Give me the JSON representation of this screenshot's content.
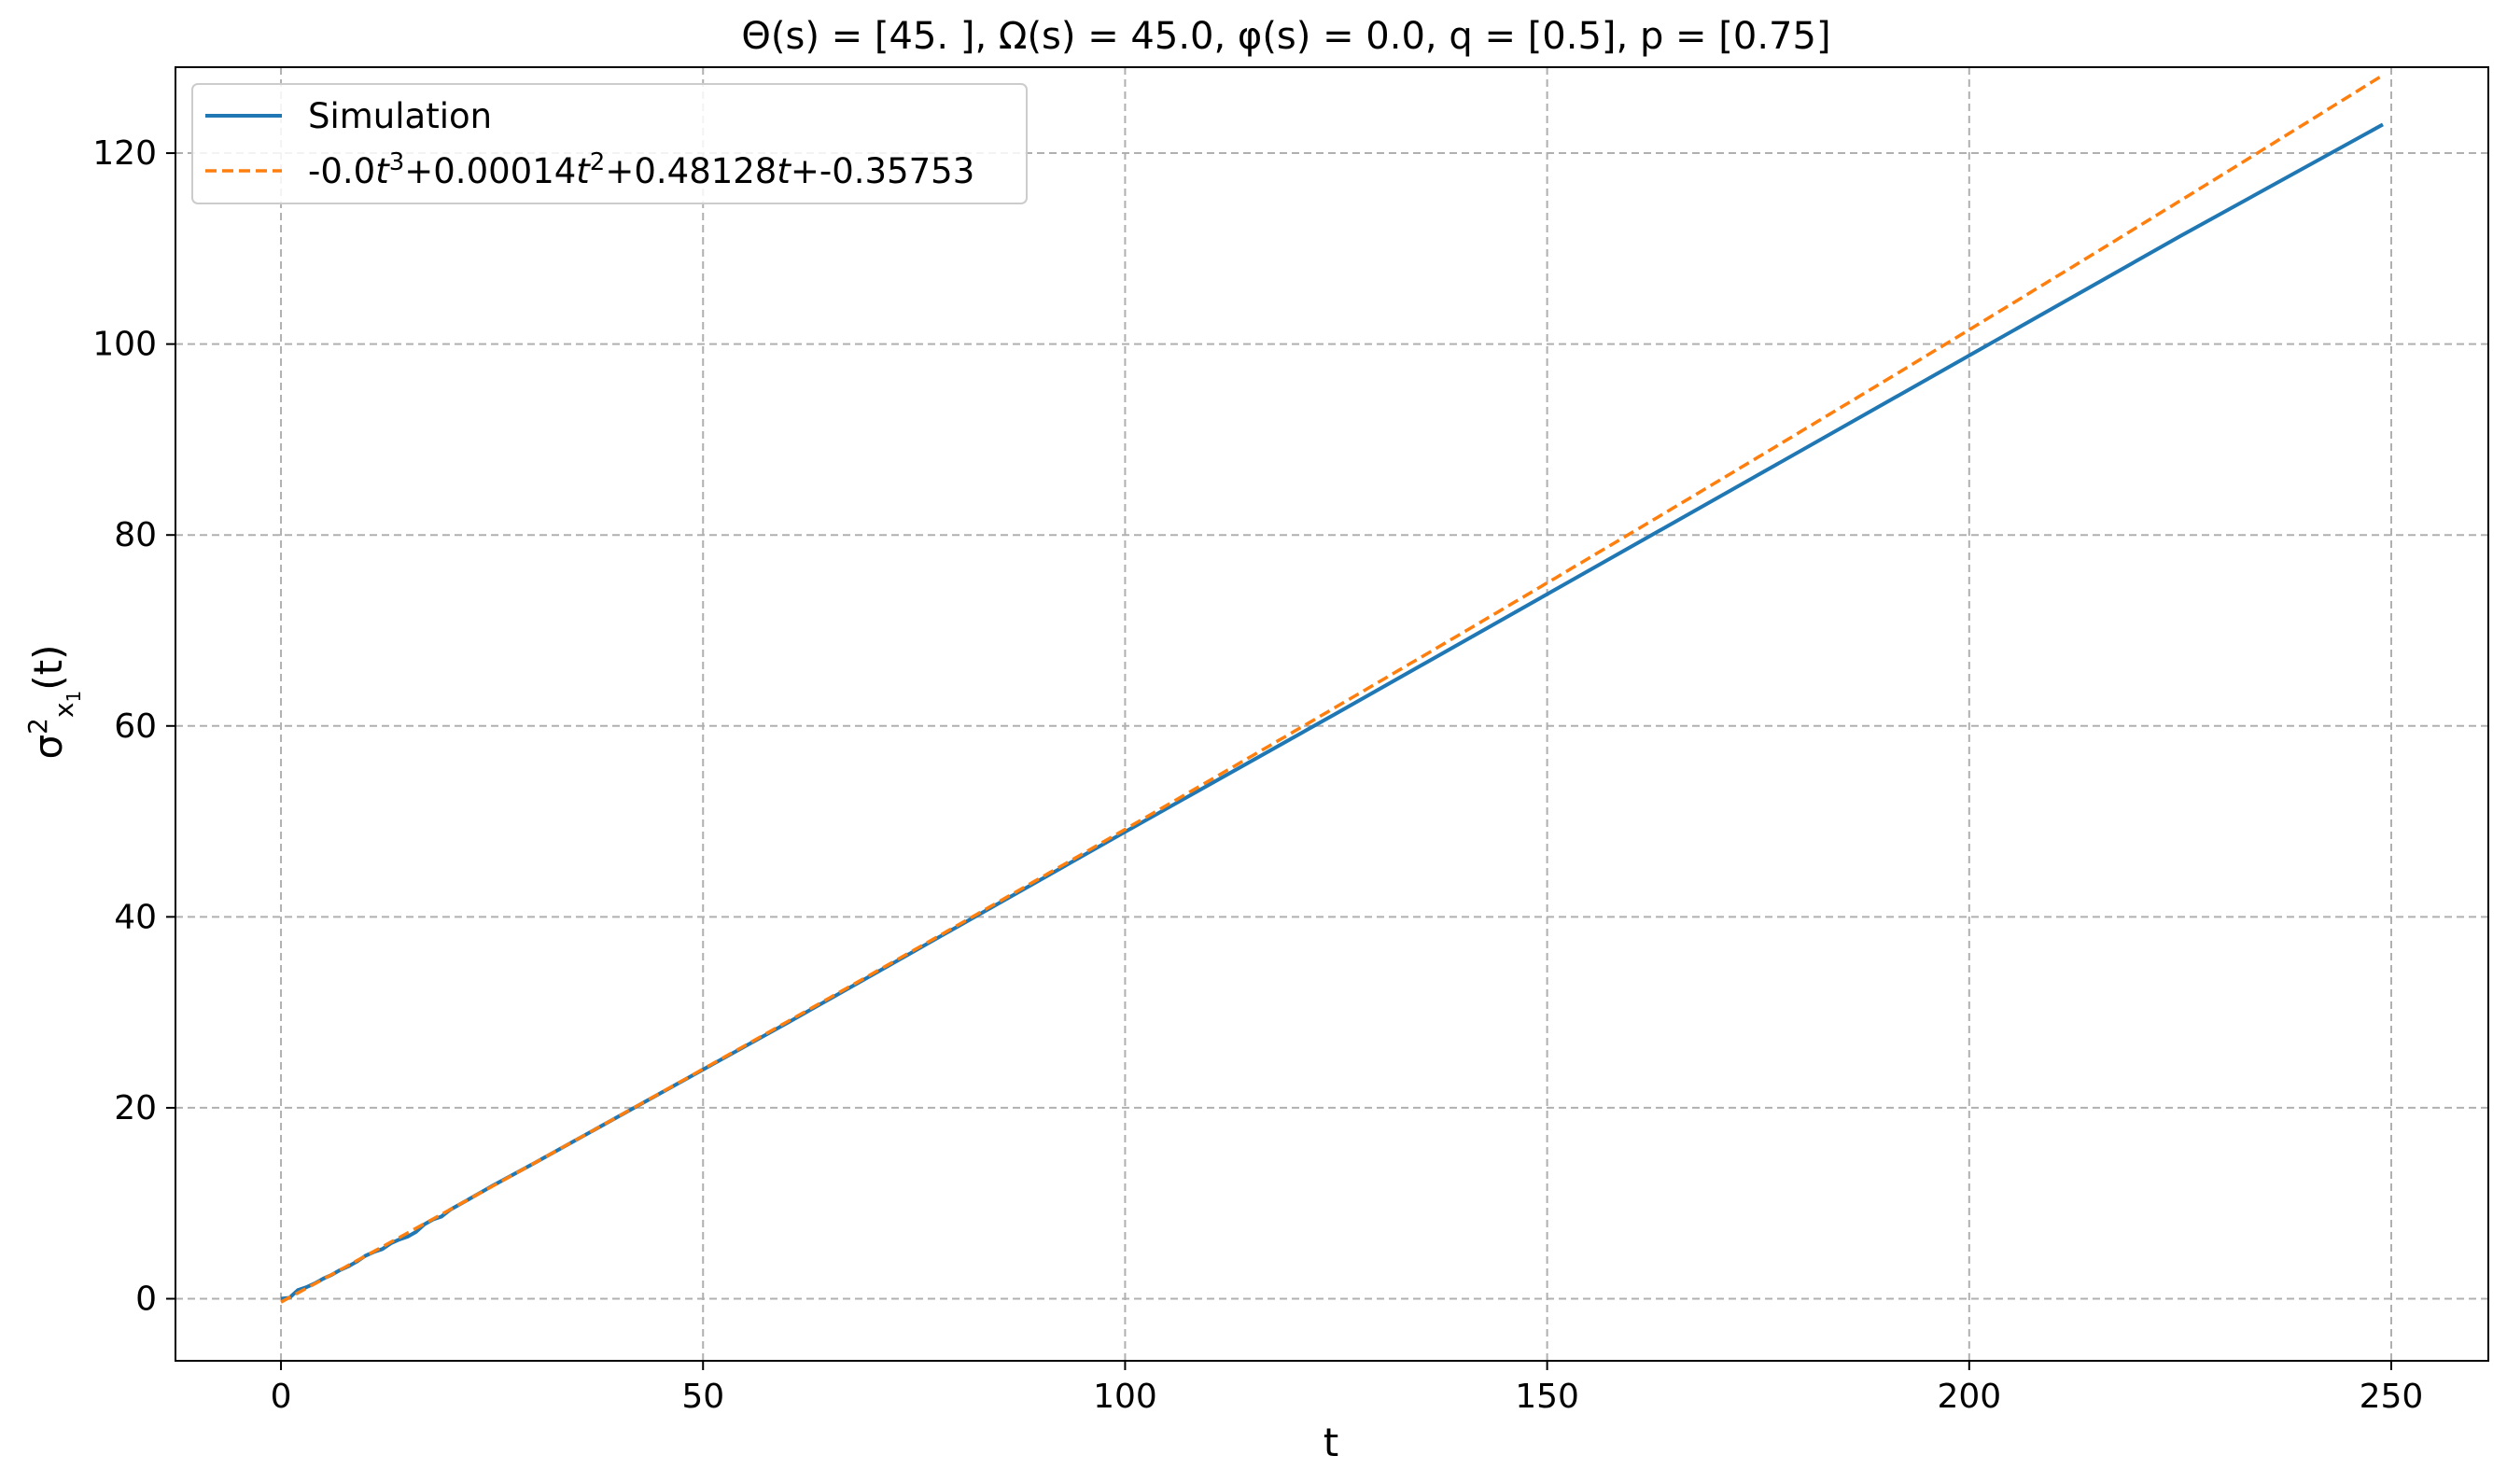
{
  "chart_data": {
    "type": "line",
    "title": "Θ(s) = [45. ], Ω(s) = 45.0, φ(s) = 0.0, q = [0.5], p = [0.75]",
    "xlabel": "t",
    "ylabel": "σ²x₁(t)",
    "xlim": [
      -12.5,
      261.5
    ],
    "ylim": [
      -6.5,
      129
    ],
    "xticks": [
      0,
      50,
      100,
      150,
      200,
      250
    ],
    "yticks": [
      0,
      20,
      40,
      60,
      80,
      100,
      120
    ],
    "xtick_labels": [
      "0",
      "50",
      "100",
      "150",
      "200",
      "250"
    ],
    "ytick_labels": [
      "0",
      "20",
      "40",
      "60",
      "80",
      "100",
      "120"
    ],
    "grid": true,
    "legend_position": "top-left",
    "series": [
      {
        "name": "Simulation",
        "color": "#1f77b4",
        "style": "solid",
        "x": [
          0,
          1,
          2,
          3,
          4,
          5,
          6,
          7,
          8,
          9,
          10,
          11,
          12,
          13,
          14,
          15,
          16,
          17,
          18,
          19,
          20,
          22,
          25,
          30,
          40,
          50,
          60,
          75,
          100,
          125,
          150,
          175,
          200,
          225,
          249
        ],
        "y": [
          0,
          0.1,
          0.9,
          1.2,
          1.6,
          2.1,
          2.5,
          3.0,
          3.4,
          3.9,
          4.5,
          4.9,
          5.2,
          5.8,
          6.2,
          6.5,
          7.0,
          7.8,
          8.3,
          8.6,
          9.3,
          10.3,
          11.8,
          14.2,
          19.1,
          24.0,
          28.9,
          36.4,
          48.9,
          61.3,
          73.8,
          86.3,
          98.8,
          111.3,
          123.0
        ]
      },
      {
        "name": "-0.0t³+0.00014t²+0.48128t+-0.35753",
        "color": "#ff7f0e",
        "style": "dashed",
        "coefficients": {
          "t3": -0.0,
          "t2": 0.00014,
          "t1": 0.48128,
          "t0": -0.35753
        },
        "x_range": [
          0,
          249
        ]
      }
    ]
  }
}
